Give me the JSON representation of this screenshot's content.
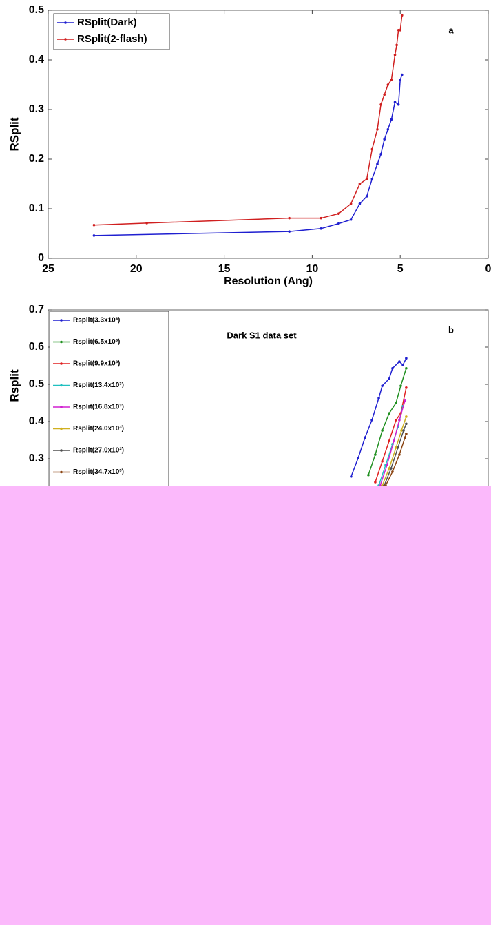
{
  "chart_data": [
    {
      "type": "line",
      "ylabel": "RSplit",
      "xlabel": "Resolution (Ang)",
      "label": "a",
      "xlim": [
        25,
        0
      ],
      "xticks": [
        25,
        20,
        15,
        10,
        5,
        0
      ],
      "ylim": [
        0,
        0.5
      ],
      "yticks": [
        0,
        0.1,
        0.2,
        0.3,
        0.4,
        0.5
      ],
      "legend": "upper left",
      "series": [
        {
          "name": "RSplit(Dark)",
          "color": "#1f1fd0",
          "x": [
            22.4,
            11.3,
            9.5,
            8.5,
            7.8,
            7.3,
            6.9,
            6.6,
            6.3,
            6.1,
            5.9,
            5.7,
            5.5,
            5.3,
            5.1,
            5.0,
            4.9
          ],
          "values": [
            0.046,
            0.054,
            0.06,
            0.07,
            0.078,
            0.11,
            0.125,
            0.16,
            0.19,
            0.21,
            0.24,
            0.26,
            0.28,
            0.315,
            0.31,
            0.36,
            0.37
          ]
        },
        {
          "name": "RSplit(2-flash)",
          "color": "#d01f1f",
          "x": [
            22.4,
            19.4,
            11.3,
            9.5,
            8.5,
            7.8,
            7.3,
            6.9,
            6.6,
            6.3,
            6.1,
            5.9,
            5.7,
            5.5,
            5.3,
            5.2,
            5.1,
            5.0,
            4.9
          ],
          "values": [
            0.067,
            0.071,
            0.081,
            0.081,
            0.09,
            0.11,
            0.15,
            0.16,
            0.22,
            0.26,
            0.31,
            0.33,
            0.35,
            0.36,
            0.41,
            0.43,
            0.46,
            0.46,
            0.49
          ]
        }
      ]
    },
    {
      "type": "line",
      "ylabel": "Rsplit",
      "title": "Dark S1 data set",
      "label": "b",
      "xlim": [
        25,
        0
      ],
      "ylim": [
        0,
        0.7
      ],
      "yticks": [
        0.3,
        0.4,
        0.5,
        0.6,
        0.7
      ],
      "legend": "upper left",
      "series": [
        {
          "name": "Rsplit(3.3x10³)",
          "color": "#1f1fd0",
          "x": [
            7.79,
            7.39,
            7.0,
            6.61,
            6.22,
            6.02,
            5.63,
            5.44,
            5.05,
            4.85,
            4.66
          ],
          "values": [
            0.252,
            0.302,
            0.357,
            0.404,
            0.463,
            0.496,
            0.515,
            0.543,
            0.561,
            0.552,
            0.57
          ]
        },
        {
          "name": "Rsplit(6.5x10³)",
          "color": "#1f8f1f",
          "x": [
            6.81,
            6.42,
            6.02,
            5.63,
            5.24,
            4.97,
            4.66
          ],
          "values": [
            0.256,
            0.311,
            0.376,
            0.422,
            0.45,
            0.496,
            0.543
          ]
        },
        {
          "name": "Rsplit(9.9x10³)",
          "color": "#e02020",
          "x": [
            6.42,
            6.02,
            5.63,
            5.24,
            4.97,
            4.66
          ],
          "values": [
            0.237,
            0.293,
            0.348,
            0.404,
            0.422,
            0.491
          ]
        },
        {
          "name": "Rsplit(13.4x10³)",
          "color": "#20c0c0",
          "x": [
            6.22,
            5.83,
            5.44,
            5.13,
            4.85
          ],
          "values": [
            0.228,
            0.283,
            0.339,
            0.385,
            0.441
          ]
        },
        {
          "name": "Rsplit(16.8x10³)",
          "color": "#d020d0",
          "x": [
            6.14,
            5.75,
            5.36,
            5.05,
            4.73
          ],
          "values": [
            0.228,
            0.283,
            0.348,
            0.404,
            0.456
          ]
        },
        {
          "name": "Rsplit(24.0x10³)",
          "color": "#d0b020",
          "x": [
            6.02,
            5.63,
            5.24,
            4.93,
            4.66
          ],
          "values": [
            0.228,
            0.274,
            0.33,
            0.376,
            0.413
          ]
        },
        {
          "name": "Rsplit(27.0x10³)",
          "color": "#505050",
          "x": [
            5.91,
            5.52,
            5.13,
            4.81,
            4.66
          ],
          "values": [
            0.228,
            0.274,
            0.33,
            0.376,
            0.394
          ]
        },
        {
          "name": "Rsplit(34.7x10³)",
          "color": "#8b4513",
          "x": [
            5.83,
            5.44,
            5.05,
            4.73,
            4.66
          ],
          "values": [
            0.228,
            0.265,
            0.311,
            0.357,
            0.367
          ]
        }
      ]
    }
  ]
}
